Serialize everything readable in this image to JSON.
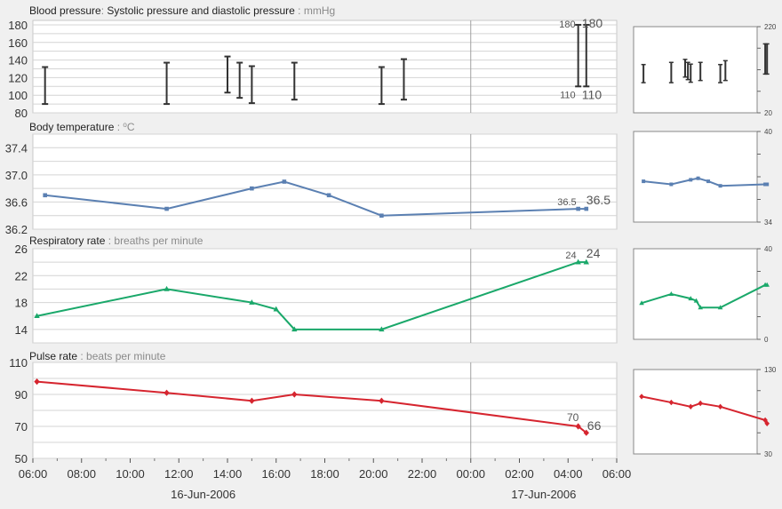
{
  "colors": {
    "background": "#f0f0f0",
    "plot_background": "#ffffff",
    "grid": "#d4d4d4",
    "axis_text": "#333333",
    "label_gray": "#8a8a8a",
    "bp": "#333333",
    "temp": "#5b80b2",
    "resp": "#1aa86a",
    "pulse": "#d6252f"
  },
  "x_axis": {
    "start": "2006-06-16 06:00",
    "end": "2006-06-17 06:00",
    "divider": "2006-06-17 00:00",
    "tick_labels": [
      "06:00",
      "08:00",
      "10:00",
      "12:00",
      "14:00",
      "16:00",
      "18:00",
      "20:00",
      "22:00",
      "00:00",
      "02:00",
      "04:00",
      "06:00"
    ],
    "date_labels": [
      {
        "text": "16-Jun-2006",
        "at": "2006-06-16 13:00"
      },
      {
        "text": "17-Jun-2006",
        "at": "2006-06-17 03:00"
      }
    ]
  },
  "chart_data": [
    {
      "id": "bp",
      "type": "range",
      "title": "Blood pressure",
      "subtitle": "Systolic pressure and diastolic pressure",
      "unit": "mmHg",
      "ylim": [
        80,
        185
      ],
      "yticks": [
        "80",
        "100",
        "120",
        "140",
        "160",
        "180"
      ],
      "points": [
        {
          "t": "2006-06-16 06:30",
          "low": 90,
          "high": 132
        },
        {
          "t": "2006-06-16 11:30",
          "low": 90,
          "high": 137
        },
        {
          "t": "2006-06-16 14:00",
          "low": 103,
          "high": 144
        },
        {
          "t": "2006-06-16 14:30",
          "low": 97,
          "high": 137
        },
        {
          "t": "2006-06-16 15:00",
          "low": 91,
          "high": 133
        },
        {
          "t": "2006-06-16 16:45",
          "low": 95,
          "high": 137
        },
        {
          "t": "2006-06-16 20:20",
          "low": 90,
          "high": 132
        },
        {
          "t": "2006-06-16 21:15",
          "low": 95,
          "high": 141
        },
        {
          "t": "2006-06-17 04:25",
          "low": 110,
          "high": 180
        },
        {
          "t": "2006-06-17 04:45",
          "low": 110,
          "high": 180
        }
      ],
      "labels": {
        "high_small": "180",
        "high_large": "180",
        "low_small": "110",
        "low_large": "110"
      },
      "mini": {
        "ylim": [
          20,
          220
        ],
        "yticks": [
          "20",
          "220"
        ]
      }
    },
    {
      "id": "temp",
      "type": "line",
      "title": "Body temperature",
      "unit_base": "C",
      "unit_sup": "o",
      "ylim": [
        36.2,
        37.6
      ],
      "yticks": [
        "36.2",
        "36.6",
        "37.0",
        "37.4"
      ],
      "x": [
        "2006-06-16 06:30",
        "2006-06-16 11:30",
        "2006-06-16 15:00",
        "2006-06-16 16:20",
        "2006-06-16 18:10",
        "2006-06-16 20:20",
        "2006-06-17 04:25",
        "2006-06-17 04:45"
      ],
      "y": [
        36.7,
        36.5,
        36.8,
        36.9,
        36.7,
        36.4,
        36.5,
        36.5
      ],
      "labels": {
        "small": "36.5",
        "large": "36.5"
      },
      "mini": {
        "ylim": [
          34,
          40
        ],
        "yticks": [
          "34",
          "40"
        ]
      }
    },
    {
      "id": "resp",
      "type": "line",
      "title": "Respiratory rate",
      "unit": "breaths per minute",
      "ylim": [
        12,
        26
      ],
      "yticks": [
        "14",
        "18",
        "22",
        "26"
      ],
      "x": [
        "2006-06-16 06:10",
        "2006-06-16 11:30",
        "2006-06-16 15:00",
        "2006-06-16 16:00",
        "2006-06-16 16:45",
        "2006-06-16 20:20",
        "2006-06-17 04:25",
        "2006-06-17 04:45"
      ],
      "y": [
        16,
        20,
        18,
        17,
        14,
        14,
        24,
        24
      ],
      "labels": {
        "small": "24",
        "large": "24"
      },
      "mini": {
        "ylim": [
          0,
          40
        ],
        "yticks": [
          "0",
          "40"
        ]
      }
    },
    {
      "id": "pulse",
      "type": "line",
      "title": "Pulse rate",
      "unit": "beats per minute",
      "ylim": [
        50,
        110
      ],
      "yticks": [
        "50",
        "70",
        "90",
        "110"
      ],
      "x": [
        "2006-06-16 06:10",
        "2006-06-16 11:30",
        "2006-06-16 15:00",
        "2006-06-16 16:45",
        "2006-06-16 20:20",
        "2006-06-17 04:25",
        "2006-06-17 04:45"
      ],
      "y": [
        98,
        91,
        86,
        90,
        86,
        70,
        66
      ],
      "labels": {
        "small": "70",
        "large": "66"
      },
      "mini": {
        "ylim": [
          30,
          130
        ],
        "yticks": [
          "30",
          "130"
        ]
      }
    }
  ]
}
